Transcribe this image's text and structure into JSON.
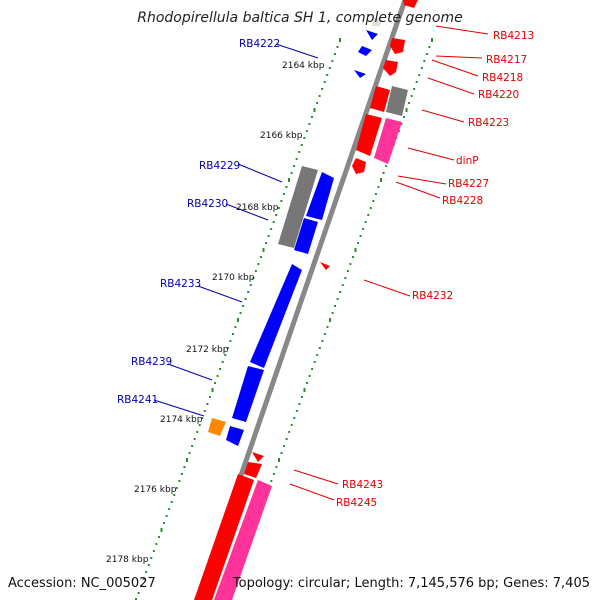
{
  "title": "Rhodopirellula baltica SH 1, complete genome",
  "footer": {
    "accession": "Accession: NC_005027",
    "topology": "Topology: circular; Length: 7,145,576 bp; Genes: 7,405"
  },
  "kbp_ticks": [
    "2164 kbp",
    "2166 kbp",
    "2168 kbp",
    "2170 kbp",
    "2172 kbp",
    "2174 kbp",
    "2176 kbp",
    "2178 kbp"
  ],
  "forward_labels": [
    "RB4213",
    "RB4217",
    "RB4218",
    "RB4220",
    "RB4223",
    "dinP",
    "RB4227",
    "RB4228",
    "RB4232",
    "RB4243",
    "RB4245"
  ],
  "reverse_labels": [
    "RB4222",
    "RB4229",
    "RB4230",
    "RB4233",
    "RB4239",
    "RB4241"
  ],
  "colors": {
    "forward_cds": "#ff0000",
    "forward_rna": "#ff3399",
    "forward_other": "#777777",
    "reverse_cds": "#0000ff",
    "reverse_other": "#777777",
    "reverse_misc": "#ff8800",
    "backbone": "#888888",
    "tick_dots": "#2e8b2e",
    "label_forward": "#e00000",
    "label_reverse": "#0000b0"
  }
}
